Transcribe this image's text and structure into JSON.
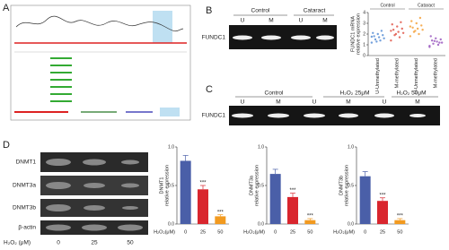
{
  "figure": {
    "panels": [
      "A",
      "B",
      "C",
      "D"
    ],
    "b": {
      "groups": [
        "Control",
        "Cataract"
      ],
      "lanes": [
        "U",
        "M",
        "U",
        "M"
      ],
      "row": "FUNDC1"
    },
    "c": {
      "groups": [
        "Control",
        "H₂O₂ 25μM",
        "H₂O₂ 50μM"
      ],
      "lanes": [
        "U",
        "M",
        "U",
        "M",
        "U",
        "M"
      ],
      "row": "FUNDC1"
    },
    "d": {
      "rows": [
        "DNMT1",
        "DNMT3a",
        "DNMT3b",
        "β-actin"
      ],
      "xlabel": "H₂O₂ (μM)",
      "doses": [
        "0",
        "25",
        "50"
      ]
    }
  },
  "chart_data": [
    {
      "type": "strip",
      "ylabel": [
        "FUNDC1 mRNA",
        "relative expression"
      ],
      "groups": [
        "Control",
        "Cataract"
      ],
      "categories": [
        "U-Unmethylated",
        "M-methylated",
        "U-Unmethylated",
        "M-methylated"
      ],
      "colors": [
        "#5b8fd6",
        "#e0574a",
        "#f4a13a",
        "#9b5bbf"
      ],
      "values": [
        [
          1.2,
          1.4,
          1.5,
          1.6,
          1.7,
          1.8,
          1.9,
          2.0,
          2.1,
          2.3,
          1.3,
          1.75
        ],
        [
          1.4,
          1.7,
          1.9,
          2.1,
          2.2,
          2.4,
          2.5,
          2.7,
          2.9,
          3.1,
          2.0,
          2.3
        ],
        [
          1.8,
          2.0,
          2.2,
          2.4,
          2.5,
          2.6,
          2.8,
          3.0,
          3.2,
          3.5,
          2.3,
          2.7
        ],
        [
          0.8,
          1.0,
          1.1,
          1.2,
          1.3,
          1.4,
          1.5,
          1.6,
          1.8,
          1.2,
          1.35,
          0.9
        ]
      ],
      "ylim": [
        0,
        4
      ],
      "yticks": [
        0,
        1,
        2,
        3,
        4
      ]
    },
    {
      "type": "bar",
      "ylabel": [
        "DNMT1",
        "relative expression"
      ],
      "xlabel": "H₂O₂(μM)",
      "categories": [
        "0",
        "25",
        "50"
      ],
      "values": [
        0.82,
        0.45,
        0.1
      ],
      "errors": [
        0.07,
        0.05,
        0.02
      ],
      "annotations": [
        null,
        "***",
        "***"
      ],
      "colors": [
        "#4a5fa8",
        "#d9262e",
        "#f29a1f"
      ],
      "ylim": [
        0,
        1.0
      ],
      "yticks": [
        {
          "value": 0,
          "label": "0.0"
        },
        {
          "value": 0.5,
          "label": "0.5"
        },
        {
          "value": 1.0,
          "label": "1.0"
        }
      ]
    },
    {
      "type": "bar",
      "ylabel": [
        "DNMT3a",
        "relative expression"
      ],
      "xlabel": "H₂O₂(μM)",
      "categories": [
        "0",
        "25",
        "50"
      ],
      "values": [
        0.65,
        0.35,
        0.05
      ],
      "errors": [
        0.06,
        0.05,
        0.02
      ],
      "annotations": [
        null,
        "***",
        "***"
      ],
      "colors": [
        "#4a5fa8",
        "#d9262e",
        "#f29a1f"
      ],
      "ylim": [
        0,
        1.0
      ],
      "yticks": [
        {
          "value": 0,
          "label": "0.0"
        },
        {
          "value": 0.5,
          "label": "0.5"
        },
        {
          "value": 1.0,
          "label": "1.0"
        }
      ]
    },
    {
      "type": "bar",
      "ylabel": [
        "DNMT3b",
        "relative expression"
      ],
      "xlabel": "H₂O₂(μM)",
      "categories": [
        "0",
        "25",
        "50"
      ],
      "values": [
        0.62,
        0.3,
        0.05
      ],
      "errors": [
        0.06,
        0.04,
        0.02
      ],
      "annotations": [
        null,
        "***",
        "***"
      ],
      "colors": [
        "#4a5fa8",
        "#d9262e",
        "#f29a1f"
      ],
      "ylim": [
        0,
        1.0
      ],
      "yticks": [
        {
          "value": 0,
          "label": "0.0"
        },
        {
          "value": 0.5,
          "label": "0.5"
        },
        {
          "value": 1.0,
          "label": "1.0"
        }
      ]
    }
  ]
}
